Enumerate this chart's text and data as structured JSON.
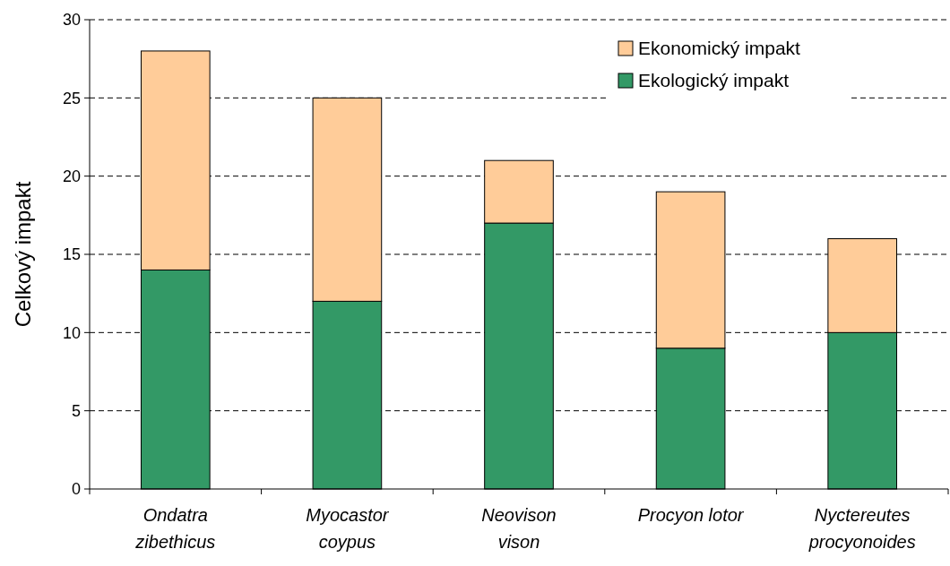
{
  "chart_data": {
    "type": "bar",
    "stacked": true,
    "ylabel": "Celkový impakt",
    "categories": [
      "Ondatra\nzibethicus",
      "Myocastor\ncoypus",
      "Neovison\nvison",
      "Procyon lotor",
      "Nyctereutes\nprocyonoides"
    ],
    "series": [
      {
        "name": "Ekologický impakt",
        "color": "#339966",
        "values": [
          14,
          12,
          17,
          9,
          10
        ]
      },
      {
        "name": "Ekonomický impakt",
        "color": "#ffcc99",
        "values": [
          14,
          13,
          4,
          10,
          6
        ]
      }
    ],
    "ylim": [
      0,
      30
    ],
    "yticks": [
      0,
      5,
      10,
      15,
      20,
      25,
      30
    ],
    "grid": "y",
    "legend": "top right"
  }
}
